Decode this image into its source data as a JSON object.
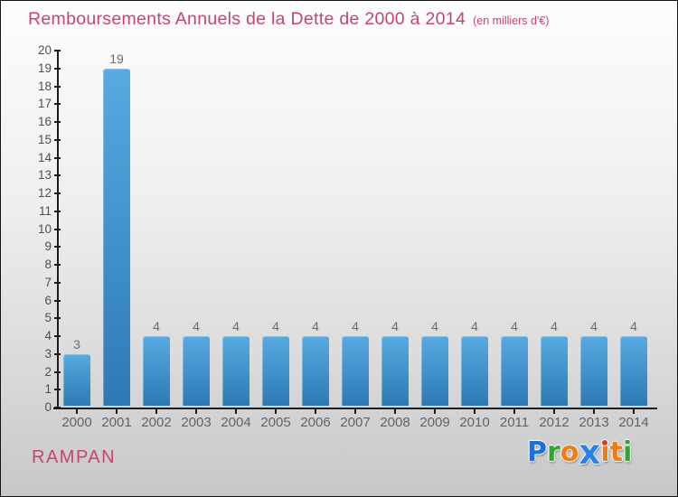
{
  "page": {
    "title": "Remboursements Annuels de la Dette de 2000 à 2014",
    "subtitle": "(en milliers d'€)",
    "org_name": "RAMPAN",
    "title_color": "#c64472",
    "axis_color": "#1c1c1c",
    "background_top": "#fdfdfd",
    "background_bottom": "#c7c7c7"
  },
  "chart_data": {
    "type": "bar",
    "title": "Remboursements Annuels de la Dette de 2000 à 2014",
    "subtitle": "(en milliers d'€)",
    "categories": [
      "2000",
      "2001",
      "2002",
      "2003",
      "2004",
      "2005",
      "2006",
      "2007",
      "2008",
      "2009",
      "2010",
      "2011",
      "2012",
      "2013",
      "2014"
    ],
    "values": [
      3,
      19,
      4,
      4,
      4,
      4,
      4,
      4,
      4,
      4,
      4,
      4,
      4,
      4,
      4
    ],
    "xlabel": "",
    "ylabel": "",
    "ylim": [
      0,
      20
    ],
    "ytick_step": 1,
    "grid": false,
    "legend_position": "none",
    "value_labels_shown": true,
    "bar_color_top": "#58aae1",
    "bar_color_bottom": "#2d79b4",
    "value_label_color": "#6b6b6b",
    "tick_label_color": "#4f4f4f"
  },
  "logo": {
    "name": "Proxiti",
    "letters": [
      {
        "ch": "P",
        "color": "#1e6fd6"
      },
      {
        "ch": "r",
        "color": "#35a435"
      },
      {
        "ch": "o",
        "color": "#ef7d17"
      },
      {
        "ch": "x",
        "color": "#2b83e8",
        "big": true
      },
      {
        "ch": "i",
        "color": "#ef7d17",
        "dot": "#e0391f"
      },
      {
        "ch": "t",
        "color": "#ef7d17"
      },
      {
        "ch": "i",
        "color": "#35a435"
      }
    ]
  }
}
